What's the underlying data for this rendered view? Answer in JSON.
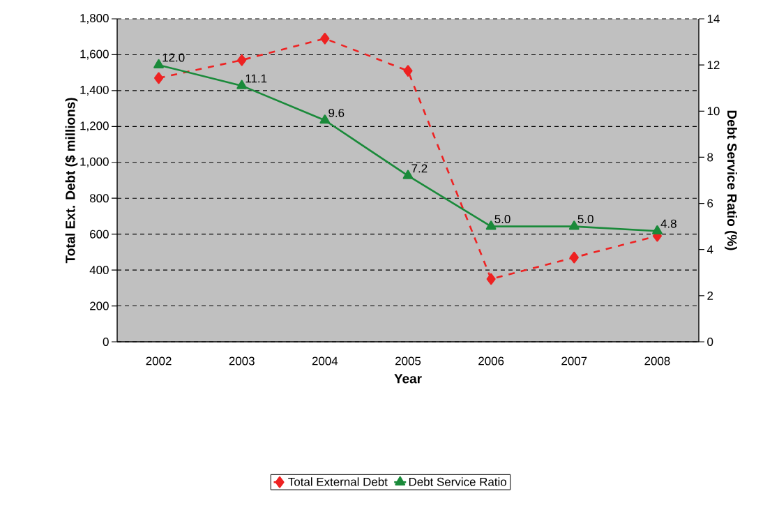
{
  "chart_data": {
    "type": "line",
    "xlabel": "Year",
    "ylabel": "Total Ext. Debt ($ millions)",
    "y2label": "Debt Service Ratio (%)",
    "categories": [
      "2002",
      "2003",
      "2004",
      "2005",
      "2006",
      "2007",
      "2008"
    ],
    "series": [
      {
        "name": "Total External Debt",
        "color": "#ee2222",
        "marker": "diamond",
        "line_style": "dashed",
        "values": [
          1470,
          1570,
          1690,
          1510,
          350,
          470,
          590
        ]
      },
      {
        "name": "Debt Service Ratio",
        "color": "#1a8a3a",
        "marker": "triangle",
        "line_style": "solid",
        "axis": "y2",
        "values": [
          12.0,
          11.1,
          9.6,
          7.2,
          5.0,
          5.0,
          4.8
        ],
        "value_labels": [
          "12.0",
          "11.1",
          "9.6",
          "7.2",
          "5.0",
          "5.0",
          "4.8"
        ]
      }
    ],
    "ylim": [
      0,
      1800
    ],
    "yticks": [
      0,
      200,
      400,
      600,
      800,
      {
        "value": 1000,
        "label": "1,000"
      },
      {
        "value": 1200,
        "label": "1,200"
      },
      {
        "value": 1400,
        "label": "1,400"
      },
      {
        "value": 1600,
        "label": "1,600"
      },
      {
        "value": 1800,
        "label": "1,800"
      }
    ],
    "y2lim": [
      0,
      14
    ],
    "y2ticks": [
      0,
      2,
      4,
      6,
      8,
      10,
      12,
      14
    ],
    "grid": "y",
    "legend": "bottom"
  }
}
